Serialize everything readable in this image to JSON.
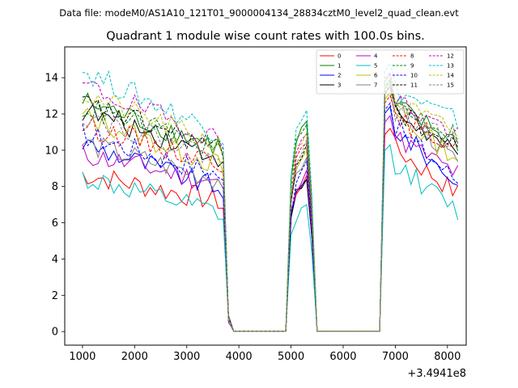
{
  "chart_data": {
    "type": "line",
    "suptitle": "Data file: modeM0/AS1A10_121T01_9000004134_28834cztM0_level2_quad_clean.evt",
    "title": "Quadrant 1 module wise count rates with 100.0s bins.",
    "xlabel": "",
    "ylabel": "",
    "x_offset_label": "+3.4941e8",
    "xlim": [
      660,
      8360
    ],
    "ylim": [
      -0.75,
      15.7
    ],
    "xticks": [
      1000,
      2000,
      3000,
      4000,
      5000,
      6000,
      7000,
      8000
    ],
    "xtick_labels": [
      "1000",
      "2000",
      "3000",
      "4000",
      "5000",
      "6000",
      "7000",
      "8000"
    ],
    "yticks": [
      0,
      2,
      4,
      6,
      8,
      10,
      12,
      14
    ],
    "ytick_labels": [
      "0",
      "2",
      "4",
      "6",
      "8",
      "10",
      "12",
      "14"
    ],
    "legend_location": "top-right",
    "segments": [
      {
        "x_start": 1000,
        "x_end": 3700,
        "step": 100
      },
      {
        "x_start": 3700,
        "x_end": 4900,
        "step": 100
      },
      {
        "x_start": 4900,
        "x_end": 5500,
        "step": 100
      },
      {
        "x_start": 5500,
        "x_end": 6700,
        "step": 100
      },
      {
        "x_start": 6700,
        "x_end": 8200,
        "step": 100
      }
    ],
    "series": [
      {
        "name": "0",
        "color": "#ff0000",
        "dash": "solid",
        "level_a": 8.7,
        "level_b": 7.2,
        "peak_mid": 8.6,
        "peak_c": 11.2,
        "level_end": 7.6
      },
      {
        "name": "1",
        "color": "#008000",
        "dash": "solid",
        "level_a": 12.7,
        "level_b": 10.2,
        "peak_mid": 11.6,
        "peak_c": 13.8,
        "level_end": 10.4
      },
      {
        "name": "2",
        "color": "#0000ff",
        "dash": "solid",
        "level_a": 10.4,
        "level_b": 7.9,
        "peak_mid": 8.4,
        "peak_c": 12.4,
        "level_end": 8.2
      },
      {
        "name": "3",
        "color": "#000000",
        "dash": "solid",
        "level_a": 12.2,
        "level_b": 9.7,
        "peak_mid": 8.4,
        "peak_c": 13.5,
        "level_end": 9.6
      },
      {
        "name": "4",
        "color": "#bf00bf",
        "dash": "solid",
        "level_a": 9.8,
        "level_b": 8.2,
        "peak_mid": 8.9,
        "peak_c": 11.9,
        "level_end": 8.7
      },
      {
        "name": "5",
        "color": "#00bfbf",
        "dash": "solid",
        "level_a": 8.5,
        "level_b": 6.5,
        "peak_mid": 7.0,
        "peak_c": 10.3,
        "level_end": 6.6
      },
      {
        "name": "6",
        "color": "#bfbf00",
        "dash": "solid",
        "level_a": 11.9,
        "level_b": 9.2,
        "peak_mid": 10.0,
        "peak_c": 13.2,
        "level_end": 9.6
      },
      {
        "name": "7",
        "color": "#808080",
        "dash": "solid",
        "level_a": 10.4,
        "level_b": 8.4,
        "peak_mid": 9.6,
        "peak_c": 14.2,
        "level_end": 9.2
      },
      {
        "name": "8",
        "color": "#ff0000",
        "dash": "dashed",
        "level_a": 11.4,
        "level_b": 9.4,
        "peak_mid": 10.4,
        "peak_c": 13.0,
        "level_end": 10.2
      },
      {
        "name": "9",
        "color": "#008000",
        "dash": "dashed",
        "level_a": 12.4,
        "level_b": 10.1,
        "peak_mid": 11.4,
        "peak_c": 13.9,
        "level_end": 10.8
      },
      {
        "name": "10",
        "color": "#0000ff",
        "dash": "dashed",
        "level_a": 10.9,
        "level_b": 8.7,
        "peak_mid": 9.4,
        "peak_c": 12.6,
        "level_end": 8.3
      },
      {
        "name": "11",
        "color": "#000000",
        "dash": "dashed",
        "level_a": 12.6,
        "level_b": 10.1,
        "peak_mid": 10.3,
        "peak_c": 13.6,
        "level_end": 10.0
      },
      {
        "name": "12",
        "color": "#bf00bf",
        "dash": "dashed",
        "level_a": 13.6,
        "level_b": 10.6,
        "peak_mid": 10.9,
        "peak_c": 14.3,
        "level_end": 10.8
      },
      {
        "name": "13",
        "color": "#00bfbf",
        "dash": "dashed",
        "level_a": 14.4,
        "level_b": 11.0,
        "peak_mid": 12.2,
        "peak_c": 14.8,
        "level_end": 11.6
      },
      {
        "name": "14",
        "color": "#bfbf00",
        "dash": "dashed",
        "level_a": 13.1,
        "level_b": 10.3,
        "peak_mid": 11.0,
        "peak_c": 14.0,
        "level_end": 10.9
      },
      {
        "name": "15",
        "color": "#808080",
        "dash": "dashed",
        "level_a": 12.0,
        "level_b": 9.6,
        "peak_mid": 10.6,
        "peak_c": 13.5,
        "level_end": 10.2
      }
    ]
  }
}
